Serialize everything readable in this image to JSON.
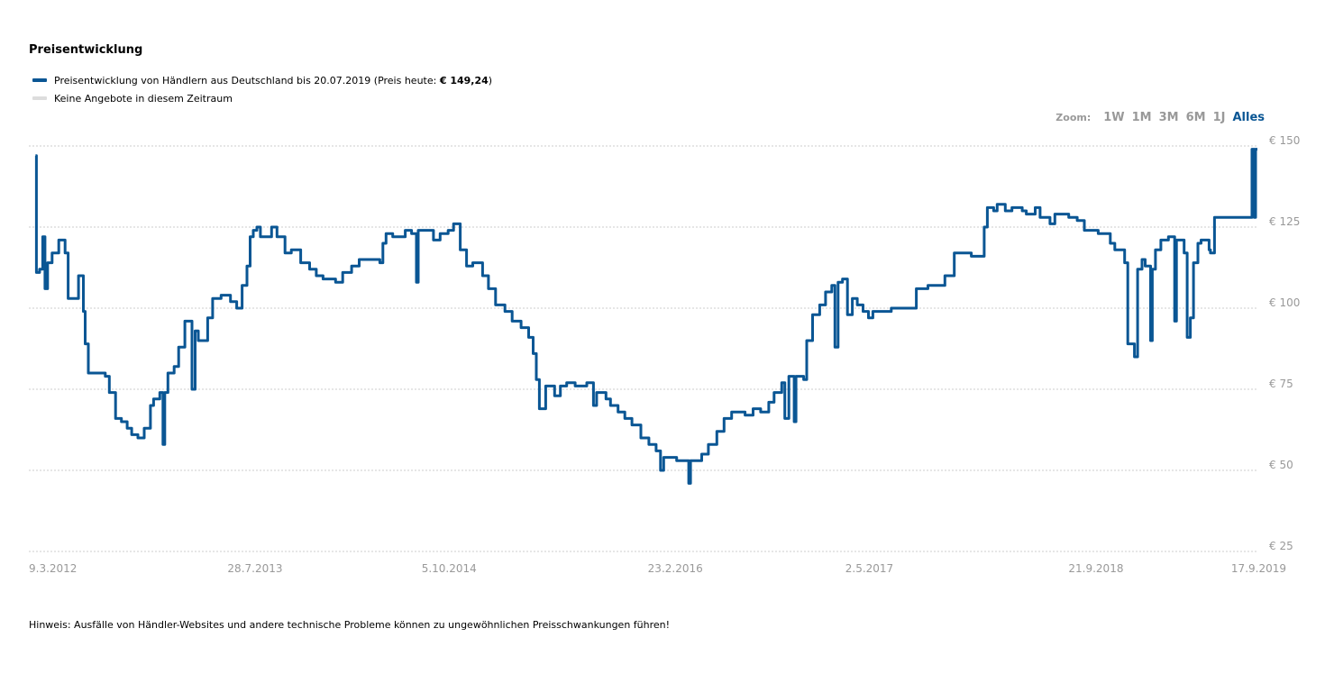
{
  "title": "Preisentwicklung",
  "legend": {
    "series_prefix": "Preisentwicklung von Händlern aus Deutschland bis 20.07.2019 (Preis heute: ",
    "series_price": "€ 149,24",
    "series_suffix": ")",
    "no_offers": "Keine Angebote in diesem Zeitraum"
  },
  "colors": {
    "series": "#0a5694",
    "no_offers": "#dddddd",
    "active_zoom": "#0a5694"
  },
  "zoom": {
    "label": "Zoom:",
    "buttons": [
      "1W",
      "1M",
      "3M",
      "6M",
      "1J",
      "Alles"
    ],
    "active": "Alles"
  },
  "note": "Hinweis: Ausfälle von Händler-Websites und andere technische Probleme können zu ungewöhnlichen Preisschwankungen führen!",
  "chart_data": {
    "type": "line",
    "x_type": "date",
    "x_range": [
      "2012-03-09",
      "2019-09-17"
    ],
    "ylim": [
      25,
      150
    ],
    "y_ticks": [
      150,
      125,
      100,
      75,
      50,
      25
    ],
    "y_tick_labels": [
      "€ 150",
      "€ 125",
      "€ 100",
      "€ 75",
      "€ 50",
      "€ 25"
    ],
    "x_ticks": [
      "2012-03-09",
      "2013-07-28",
      "2014-10-05",
      "2016-02-23",
      "2017-05-02",
      "2018-09-21",
      "2019-09-17"
    ],
    "x_tick_labels": [
      "9.3.2012",
      "28.7.2013",
      "5.10.2014",
      "23.2.2016",
      "2.5.2017",
      "21.9.2018",
      "17.9.2019"
    ],
    "grid": true,
    "legend_position": "top-left",
    "series": [
      {
        "step": true,
        "points": [
          [
            "2012-03-24",
            147
          ],
          [
            "2012-03-26",
            111
          ],
          [
            "2012-04-02",
            112
          ],
          [
            "2012-04-09",
            122
          ],
          [
            "2012-04-14",
            106
          ],
          [
            "2012-04-20",
            114
          ],
          [
            "2012-04-30",
            117
          ],
          [
            "2012-05-15",
            121
          ],
          [
            "2012-05-29",
            117
          ],
          [
            "2012-06-05",
            103
          ],
          [
            "2012-06-28",
            110
          ],
          [
            "2012-07-09",
            99
          ],
          [
            "2012-07-13",
            89
          ],
          [
            "2012-07-20",
            80
          ],
          [
            "2012-08-27",
            79
          ],
          [
            "2012-09-05",
            74
          ],
          [
            "2012-09-19",
            66
          ],
          [
            "2012-10-02",
            65
          ],
          [
            "2012-10-15",
            63
          ],
          [
            "2012-10-25",
            61
          ],
          [
            "2012-11-08",
            60
          ],
          [
            "2012-11-22",
            63
          ],
          [
            "2012-12-06",
            70
          ],
          [
            "2012-12-13",
            72
          ],
          [
            "2012-12-27",
            74
          ],
          [
            "2013-01-03",
            58
          ],
          [
            "2013-01-07",
            74
          ],
          [
            "2013-01-14",
            80
          ],
          [
            "2013-01-28",
            82
          ],
          [
            "2013-02-07",
            88
          ],
          [
            "2013-02-21",
            96
          ],
          [
            "2013-03-09",
            75
          ],
          [
            "2013-03-16",
            93
          ],
          [
            "2013-03-23",
            90
          ],
          [
            "2013-04-13",
            97
          ],
          [
            "2013-04-24",
            103
          ],
          [
            "2013-05-13",
            104
          ],
          [
            "2013-06-03",
            102
          ],
          [
            "2013-06-17",
            100
          ],
          [
            "2013-06-29",
            107
          ],
          [
            "2013-07-10",
            113
          ],
          [
            "2013-07-17",
            122
          ],
          [
            "2013-07-24",
            124
          ],
          [
            "2013-08-01",
            125
          ],
          [
            "2013-08-09",
            122
          ],
          [
            "2013-09-03",
            125
          ],
          [
            "2013-09-15",
            122
          ],
          [
            "2013-10-03",
            117
          ],
          [
            "2013-10-17",
            118
          ],
          [
            "2013-11-07",
            114
          ],
          [
            "2013-11-27",
            112
          ],
          [
            "2013-12-12",
            110
          ],
          [
            "2013-12-27",
            109
          ],
          [
            "2014-01-24",
            108
          ],
          [
            "2014-02-09",
            111
          ],
          [
            "2014-03-01",
            113
          ],
          [
            "2014-03-18",
            115
          ],
          [
            "2014-05-03",
            114
          ],
          [
            "2014-05-10",
            120
          ],
          [
            "2014-05-17",
            123
          ],
          [
            "2014-06-01",
            122
          ],
          [
            "2014-06-29",
            124
          ],
          [
            "2014-07-13",
            123
          ],
          [
            "2014-07-24",
            108
          ],
          [
            "2014-07-28",
            124
          ],
          [
            "2014-08-31",
            121
          ],
          [
            "2014-09-15",
            123
          ],
          [
            "2014-10-03",
            124
          ],
          [
            "2014-10-15",
            126
          ],
          [
            "2014-10-30",
            118
          ],
          [
            "2014-11-13",
            113
          ],
          [
            "2014-11-27",
            114
          ],
          [
            "2014-12-19",
            110
          ],
          [
            "2015-01-01",
            106
          ],
          [
            "2015-01-17",
            101
          ],
          [
            "2015-02-07",
            99
          ],
          [
            "2015-02-23",
            96
          ],
          [
            "2015-03-15",
            94
          ],
          [
            "2015-04-01",
            91
          ],
          [
            "2015-04-11",
            86
          ],
          [
            "2015-04-18",
            78
          ],
          [
            "2015-04-25",
            69
          ],
          [
            "2015-05-09",
            76
          ],
          [
            "2015-05-29",
            73
          ],
          [
            "2015-06-11",
            76
          ],
          [
            "2015-06-25",
            77
          ],
          [
            "2015-07-14",
            76
          ],
          [
            "2015-08-09",
            77
          ],
          [
            "2015-08-24",
            70
          ],
          [
            "2015-08-31",
            74
          ],
          [
            "2015-09-21",
            72
          ],
          [
            "2015-10-01",
            70
          ],
          [
            "2015-10-18",
            68
          ],
          [
            "2015-11-02",
            66
          ],
          [
            "2015-11-18",
            64
          ],
          [
            "2015-12-08",
            60
          ],
          [
            "2015-12-26",
            58
          ],
          [
            "2016-01-11",
            56
          ],
          [
            "2016-01-21",
            50
          ],
          [
            "2016-01-28",
            54
          ],
          [
            "2016-02-26",
            53
          ],
          [
            "2016-03-24",
            46
          ],
          [
            "2016-03-28",
            53
          ],
          [
            "2016-04-22",
            55
          ],
          [
            "2016-05-07",
            58
          ],
          [
            "2016-05-26",
            62
          ],
          [
            "2016-06-11",
            66
          ],
          [
            "2016-06-28",
            68
          ],
          [
            "2016-07-28",
            67
          ],
          [
            "2016-08-15",
            69
          ],
          [
            "2016-09-01",
            68
          ],
          [
            "2016-09-19",
            71
          ],
          [
            "2016-10-01",
            74
          ],
          [
            "2016-10-18",
            77
          ],
          [
            "2016-10-25",
            66
          ],
          [
            "2016-11-03",
            79
          ],
          [
            "2016-11-15",
            65
          ],
          [
            "2016-11-19",
            79
          ],
          [
            "2016-12-06",
            78
          ],
          [
            "2016-12-13",
            90
          ],
          [
            "2016-12-26",
            98
          ],
          [
            "2017-01-11",
            101
          ],
          [
            "2017-01-24",
            105
          ],
          [
            "2017-02-07",
            107
          ],
          [
            "2017-02-14",
            88
          ],
          [
            "2017-02-21",
            108
          ],
          [
            "2017-03-03",
            109
          ],
          [
            "2017-03-14",
            98
          ],
          [
            "2017-03-25",
            103
          ],
          [
            "2017-04-05",
            101
          ],
          [
            "2017-04-18",
            99
          ],
          [
            "2017-04-30",
            97
          ],
          [
            "2017-05-10",
            99
          ],
          [
            "2017-06-20",
            100
          ],
          [
            "2017-08-15",
            106
          ],
          [
            "2017-09-10",
            107
          ],
          [
            "2017-10-18",
            110
          ],
          [
            "2017-11-08",
            117
          ],
          [
            "2017-12-16",
            116
          ],
          [
            "2018-01-14",
            125
          ],
          [
            "2018-01-21",
            131
          ],
          [
            "2018-02-04",
            130
          ],
          [
            "2018-02-12",
            132
          ],
          [
            "2018-03-02",
            130
          ],
          [
            "2018-03-17",
            131
          ],
          [
            "2018-04-09",
            130
          ],
          [
            "2018-04-18",
            129
          ],
          [
            "2018-05-08",
            131
          ],
          [
            "2018-05-19",
            128
          ],
          [
            "2018-06-10",
            126
          ],
          [
            "2018-06-21",
            129
          ],
          [
            "2018-07-22",
            128
          ],
          [
            "2018-08-10",
            127
          ],
          [
            "2018-08-26",
            124
          ],
          [
            "2018-09-26",
            123
          ],
          [
            "2018-10-23",
            120
          ],
          [
            "2018-11-02",
            118
          ],
          [
            "2018-11-24",
            114
          ],
          [
            "2018-12-01",
            89
          ],
          [
            "2018-12-16",
            85
          ],
          [
            "2018-12-23",
            112
          ],
          [
            "2019-01-02",
            115
          ],
          [
            "2019-01-09",
            113
          ],
          [
            "2019-01-21",
            90
          ],
          [
            "2019-01-25",
            112
          ],
          [
            "2019-02-01",
            118
          ],
          [
            "2019-02-13",
            121
          ],
          [
            "2019-03-02",
            122
          ],
          [
            "2019-03-16",
            96
          ],
          [
            "2019-03-20",
            121
          ],
          [
            "2019-04-06",
            117
          ],
          [
            "2019-04-13",
            91
          ],
          [
            "2019-04-20",
            97
          ],
          [
            "2019-04-27",
            114
          ],
          [
            "2019-05-07",
            120
          ],
          [
            "2019-05-14",
            121
          ],
          [
            "2019-06-01",
            118
          ],
          [
            "2019-06-04",
            117
          ],
          [
            "2019-06-13",
            128
          ],
          [
            "2019-07-22",
            128
          ],
          [
            "2019-08-29",
            128
          ],
          [
            "2019-09-05",
            149
          ],
          [
            "2019-09-10",
            128
          ],
          [
            "2019-09-13",
            149
          ],
          [
            "2019-09-17",
            149
          ]
        ]
      }
    ]
  }
}
